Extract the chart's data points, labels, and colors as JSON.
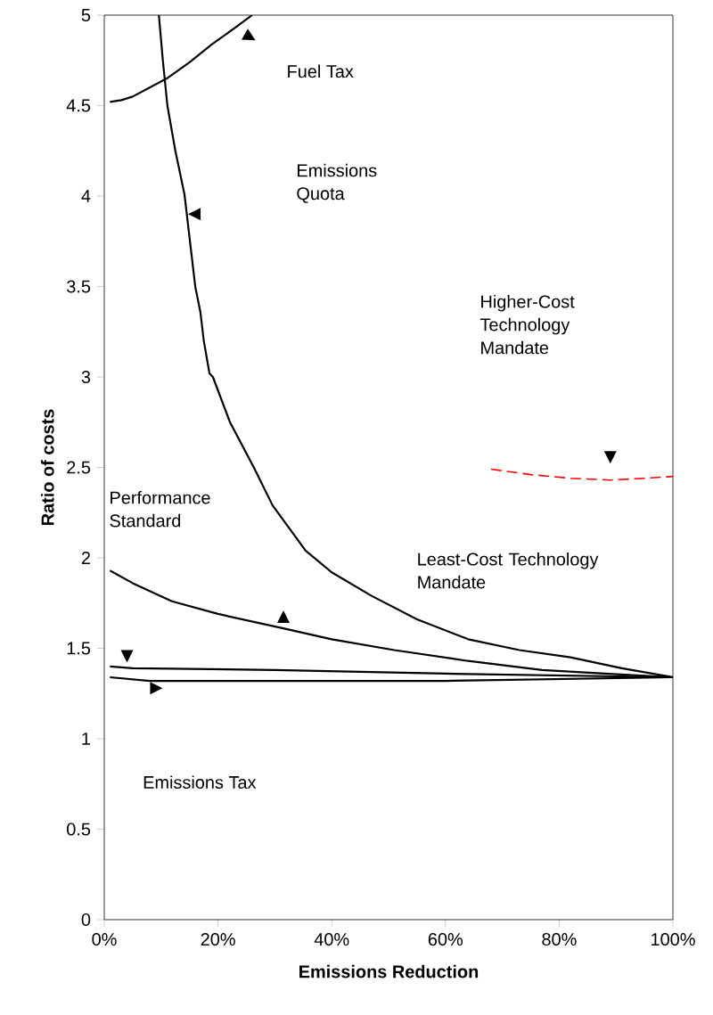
{
  "chart_data": {
    "type": "line",
    "xlabel": "Emissions Reduction",
    "ylabel": "Ratio of costs",
    "xlim": [
      0,
      100
    ],
    "ylim": [
      0,
      5
    ],
    "xticks": [
      {
        "value": 0,
        "label": "0%"
      },
      {
        "value": 20,
        "label": "20%"
      },
      {
        "value": 40,
        "label": "40%"
      },
      {
        "value": 60,
        "label": "60%"
      },
      {
        "value": 80,
        "label": "80%"
      },
      {
        "value": 100,
        "label": "100%"
      }
    ],
    "yticks": [
      0,
      0.5,
      1,
      1.5,
      2,
      2.5,
      3,
      3.5,
      4,
      4.5,
      5
    ],
    "grid": false,
    "marker": "none",
    "annotations": [
      "Fuel Tax",
      "Emissions Quota",
      "Higher-Cost Technology Mandate",
      "Performance Standard",
      "Least-Cost Technology Mandate",
      "Emissions Tax"
    ],
    "series": [
      {
        "color": "#000000",
        "x": [
          1,
          3,
          5,
          8,
          11,
          15,
          19,
          23,
          26
        ],
        "values": [
          4.52,
          4.53,
          4.55,
          4.6,
          4.65,
          4.74,
          4.84,
          4.93,
          5.0
        ]
      },
      {
        "color": "#000000",
        "x": [
          9.6,
          10.3,
          11.1,
          12.5,
          14.1,
          16,
          16.9,
          17.5,
          18.5,
          19.1,
          22.1,
          26.3,
          29.6,
          35.4,
          40,
          47,
          55,
          64,
          73,
          82,
          91,
          100
        ],
        "values": [
          5.0,
          4.75,
          4.5,
          4.25,
          4.01,
          3.5,
          3.36,
          3.2,
          3.02,
          3.0,
          2.75,
          2.5,
          2.29,
          2.04,
          1.92,
          1.79,
          1.66,
          1.55,
          1.49,
          1.45,
          1.39,
          1.34
        ]
      },
      {
        "color": "#ff0000",
        "line_style": "dashed",
        "x": [
          68,
          75,
          82,
          89,
          95,
          100
        ],
        "values": [
          2.49,
          2.46,
          2.44,
          2.43,
          2.44,
          2.45
        ]
      },
      {
        "color": "#000000",
        "x": [
          1,
          5,
          30,
          60,
          100
        ],
        "values": [
          1.4,
          1.39,
          1.38,
          1.36,
          1.34
        ]
      },
      {
        "color": "#000000",
        "x": [
          1,
          5,
          11.9,
          20,
          31.5,
          40,
          51,
          64,
          77,
          88,
          100
        ],
        "values": [
          1.93,
          1.86,
          1.76,
          1.69,
          1.61,
          1.55,
          1.49,
          1.43,
          1.38,
          1.36,
          1.34
        ]
      },
      {
        "color": "#000000",
        "x": [
          1,
          8,
          60,
          100
        ],
        "values": [
          1.34,
          1.32,
          1.32,
          1.34
        ]
      }
    ]
  }
}
